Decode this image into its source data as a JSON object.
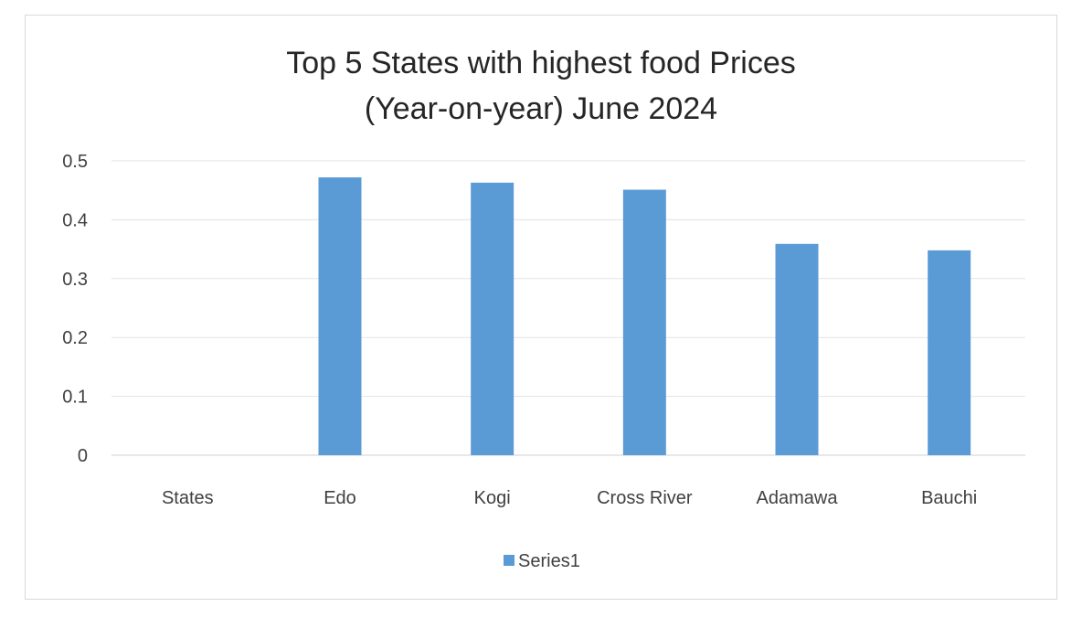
{
  "chart_data": {
    "type": "bar",
    "title_lines": [
      "Top 5 States with highest food Prices",
      "(Year-on-year) June 2024"
    ],
    "categories": [
      "States",
      "Edo",
      "Kogi",
      "Cross River",
      "Adamawa",
      "Bauchi"
    ],
    "series": [
      {
        "name": "Series1",
        "values": [
          null,
          0.472,
          0.463,
          0.451,
          0.359,
          0.348
        ],
        "color": "#5b9bd5"
      }
    ],
    "y_ticks": [
      "0",
      "0.1",
      "0.2",
      "0.3",
      "0.4",
      "0.5"
    ],
    "ylim": [
      0,
      0.5
    ],
    "grid": true,
    "legend_position": "bottom"
  }
}
